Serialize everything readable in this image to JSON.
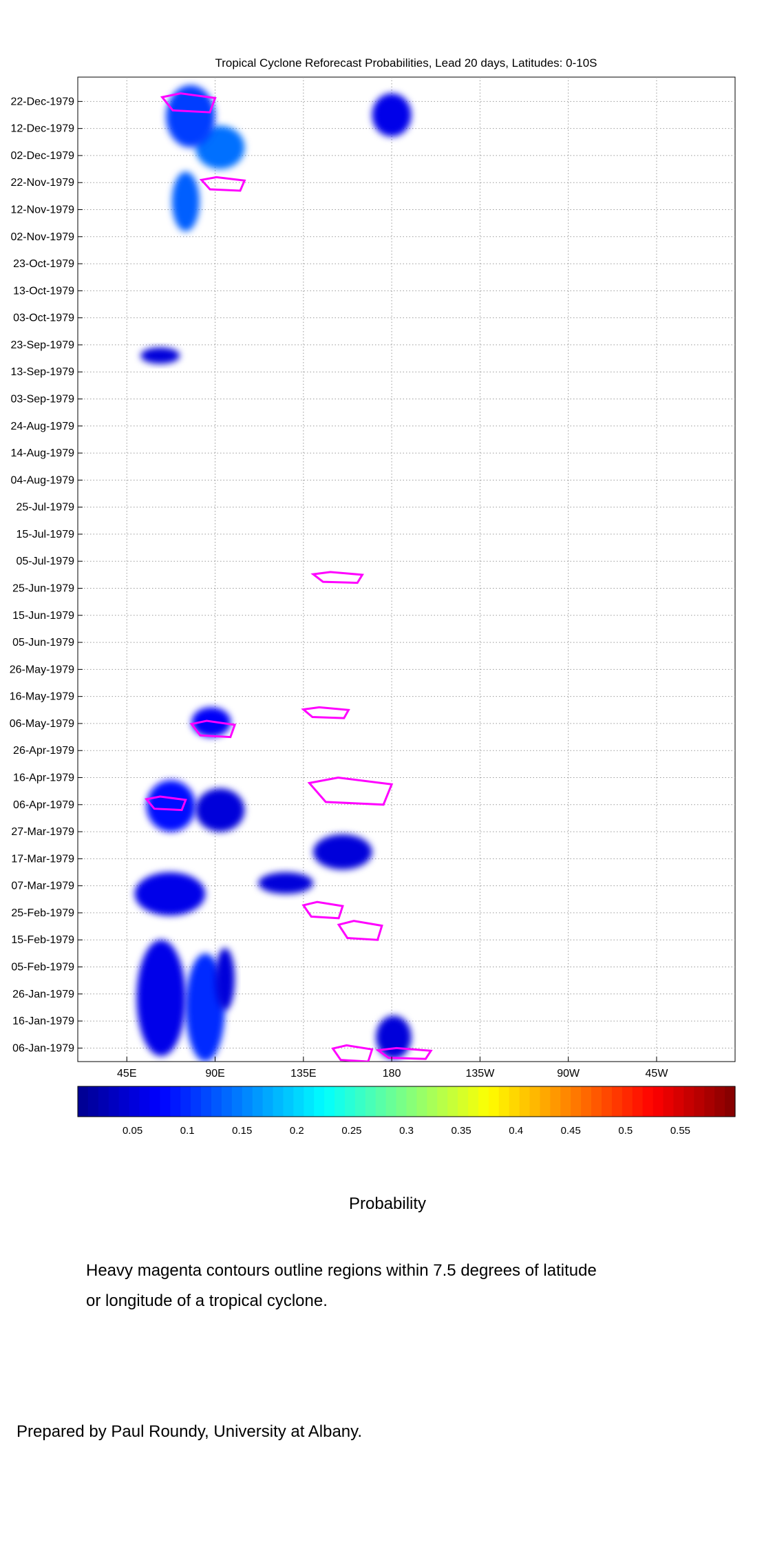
{
  "chart_data": {
    "type": "heatmap",
    "title": "Tropical Cyclone Reforecast Probabilities, Lead 20 days, Latitudes: 0-10S",
    "x_tick_labels": [
      "45E",
      "90E",
      "135E",
      "180",
      "135W",
      "90W",
      "45W"
    ],
    "x_tick_values_deg_east": [
      45,
      90,
      135,
      180,
      225,
      270,
      315
    ],
    "xlim_deg_east": [
      20,
      355
    ],
    "y_tick_labels": [
      "06-Jan-1979",
      "16-Jan-1979",
      "26-Jan-1979",
      "05-Feb-1979",
      "15-Feb-1979",
      "25-Feb-1979",
      "07-Mar-1979",
      "17-Mar-1979",
      "27-Mar-1979",
      "06-Apr-1979",
      "16-Apr-1979",
      "26-Apr-1979",
      "06-May-1979",
      "16-May-1979",
      "26-May-1979",
      "05-Jun-1979",
      "15-Jun-1979",
      "25-Jun-1979",
      "05-Jul-1979",
      "15-Jul-1979",
      "25-Jul-1979",
      "04-Aug-1979",
      "14-Aug-1979",
      "24-Aug-1979",
      "03-Sep-1979",
      "13-Sep-1979",
      "23-Sep-1979",
      "03-Oct-1979",
      "13-Oct-1979",
      "23-Oct-1979",
      "02-Nov-1979",
      "12-Nov-1979",
      "22-Nov-1979",
      "02-Dec-1979",
      "12-Dec-1979",
      "22-Dec-1979"
    ],
    "ylim": [
      "1979-01-01",
      "1979-12-31"
    ],
    "grid": true,
    "colorbar": {
      "label": "Probability",
      "tick_labels": [
        "0.05",
        "0.1",
        "0.15",
        "0.2",
        "0.25",
        "0.3",
        "0.35",
        "0.4",
        "0.45",
        "0.5",
        "0.55"
      ],
      "range": [
        0,
        0.6
      ],
      "colors": [
        "#00008f",
        "#0000ff",
        "#0080ff",
        "#00ffff",
        "#80ff80",
        "#ffff00",
        "#ff8000",
        "#ff0000",
        "#800000"
      ]
    },
    "probability_regions": [
      {
        "lon": [
          75,
          95
        ],
        "date": [
          "1979-01-01",
          "1979-02-10"
        ],
        "p": 0.1
      },
      {
        "lon": [
          50,
          75
        ],
        "date": [
          "1979-01-03",
          "1979-02-15"
        ],
        "p": 0.06
      },
      {
        "lon": [
          90,
          100
        ],
        "date": [
          "1979-01-20",
          "1979-02-12"
        ],
        "p": 0.05
      },
      {
        "lon": [
          172,
          190
        ],
        "date": [
          "1979-01-02",
          "1979-01-18"
        ],
        "p": 0.05
      },
      {
        "lon": [
          49,
          85
        ],
        "date": [
          "1979-02-24",
          "1979-03-12"
        ],
        "p": 0.06
      },
      {
        "lon": [
          55,
          80
        ],
        "date": [
          "1979-03-27",
          "1979-04-15"
        ],
        "p": 0.08
      },
      {
        "lon": [
          80,
          105
        ],
        "date": [
          "1979-03-27",
          "1979-04-12"
        ],
        "p": 0.05
      },
      {
        "lon": [
          112,
          140
        ],
        "date": [
          "1979-03-04",
          "1979-03-12"
        ],
        "p": 0.05
      },
      {
        "lon": [
          140,
          170
        ],
        "date": [
          "1979-03-13",
          "1979-03-26"
        ],
        "p": 0.05
      },
      {
        "lon": [
          78,
          98
        ],
        "date": [
          "1979-05-01",
          "1979-05-12"
        ],
        "p": 0.07
      },
      {
        "lon": [
          52,
          72
        ],
        "date": [
          "1979-09-16",
          "1979-09-22"
        ],
        "p": 0.05
      },
      {
        "lon": [
          68,
          82
        ],
        "date": [
          "1979-11-04",
          "1979-11-26"
        ],
        "p": 0.13
      },
      {
        "lon": [
          80,
          105
        ],
        "date": [
          "1979-11-27",
          "1979-12-13"
        ],
        "p": 0.14
      },
      {
        "lon": [
          65,
          90
        ],
        "date": [
          "1979-12-05",
          "1979-12-28"
        ],
        "p": 0.11
      },
      {
        "lon": [
          170,
          190
        ],
        "date": [
          "1979-12-09",
          "1979-12-25"
        ],
        "p": 0.06
      }
    ],
    "cyclone_contour_color": "#ff00ff",
    "cyclone_regions": [
      {
        "lon": [
          150,
          170
        ],
        "date": [
          "1979-01-01",
          "1979-01-07"
        ]
      },
      {
        "lon": [
          173,
          200
        ],
        "date": [
          "1979-01-02",
          "1979-01-06"
        ]
      },
      {
        "lon": [
          135,
          155
        ],
        "date": [
          "1979-02-23",
          "1979-03-01"
        ]
      },
      {
        "lon": [
          153,
          175
        ],
        "date": [
          "1979-02-15",
          "1979-02-22"
        ]
      },
      {
        "lon": [
          55,
          75
        ],
        "date": [
          "1979-04-04",
          "1979-04-09"
        ]
      },
      {
        "lon": [
          138,
          180
        ],
        "date": [
          "1979-04-06",
          "1979-04-16"
        ]
      },
      {
        "lon": [
          78,
          100
        ],
        "date": [
          "1979-05-01",
          "1979-05-07"
        ]
      },
      {
        "lon": [
          135,
          158
        ],
        "date": [
          "1979-05-08",
          "1979-05-12"
        ]
      },
      {
        "lon": [
          140,
          165
        ],
        "date": [
          "1979-06-27",
          "1979-07-01"
        ]
      },
      {
        "lon": [
          63,
          90
        ],
        "date": [
          "1979-12-18",
          "1979-12-25"
        ]
      },
      {
        "lon": [
          83,
          105
        ],
        "date": [
          "1979-11-19",
          "1979-11-24"
        ]
      }
    ]
  },
  "caption": {
    "line1": "Heavy magenta contours outline regions within 7.5 degrees of latitude",
    "line2": "or longitude of a tropical cyclone."
  },
  "credit": "Prepared by Paul Roundy, University at Albany."
}
